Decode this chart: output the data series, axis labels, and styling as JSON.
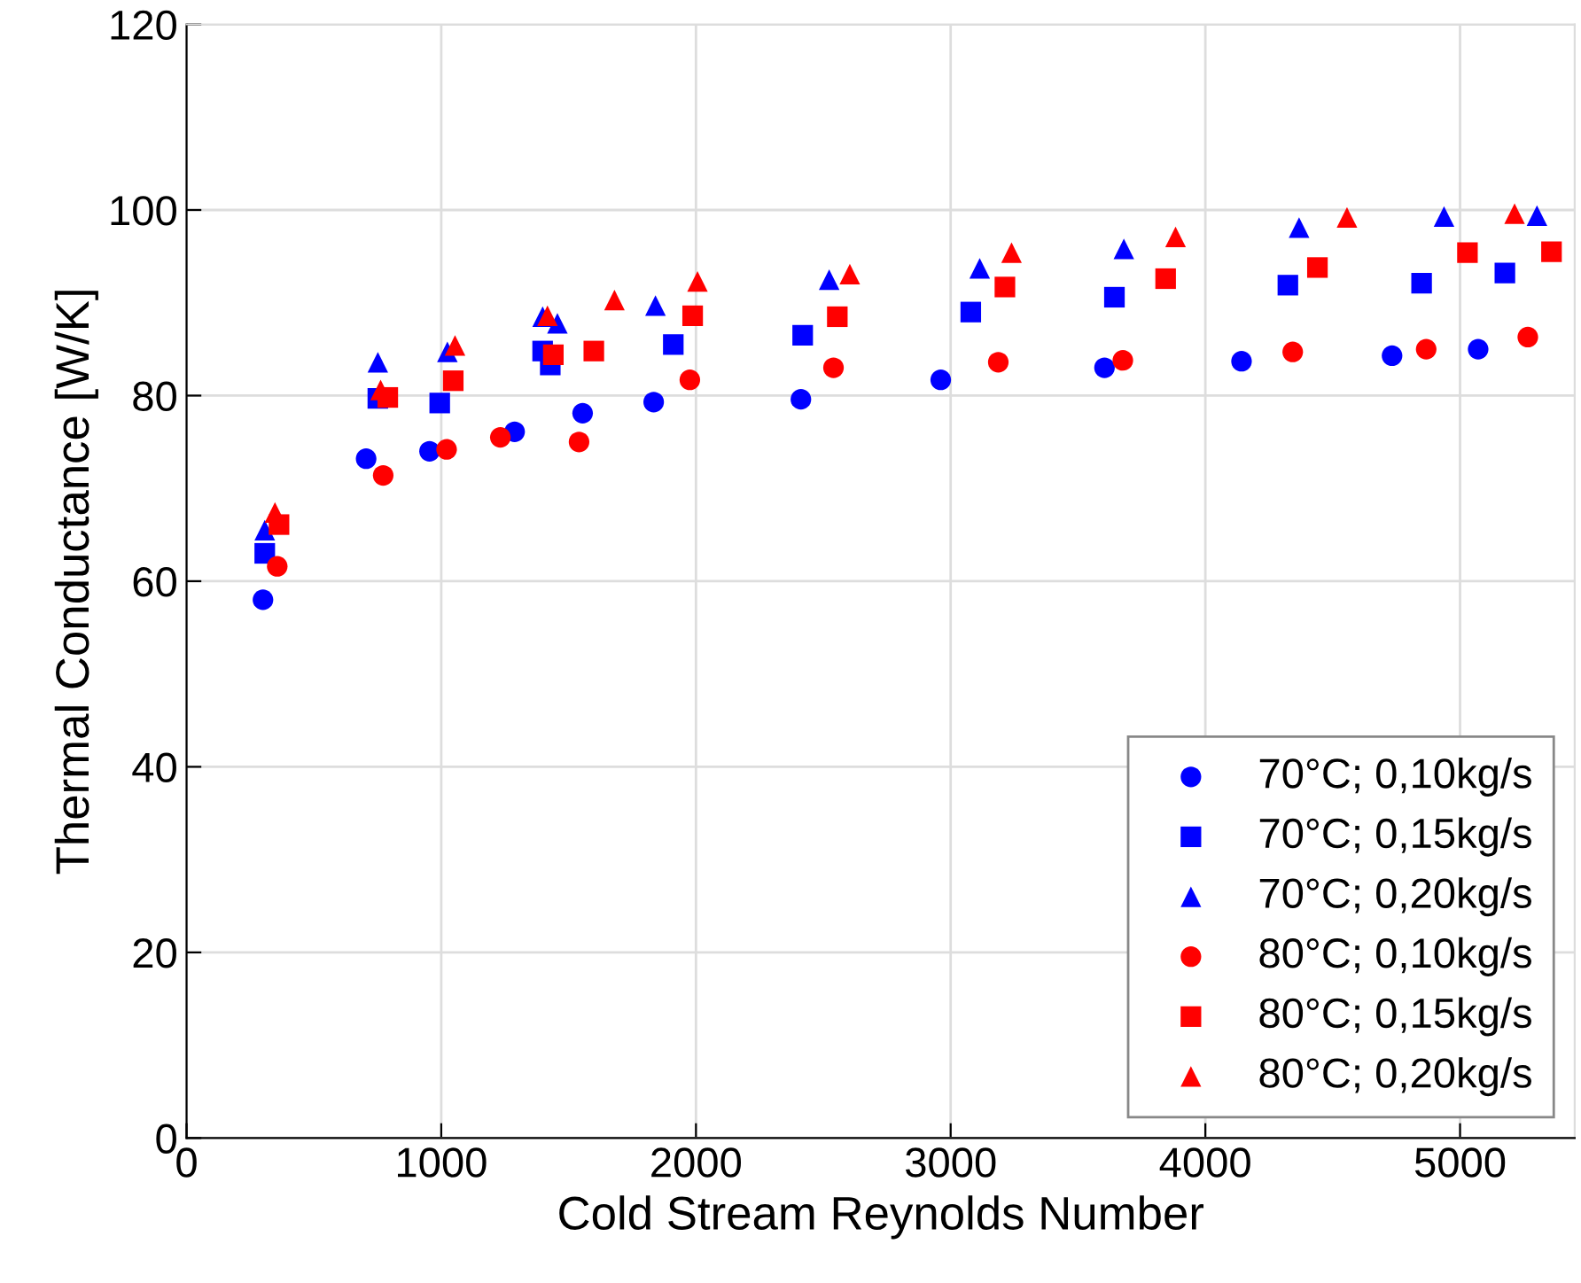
{
  "chart_data": {
    "type": "scatter",
    "xlabel": "Cold Stream Reynolds Number",
    "ylabel": "Thermal Conductance [W/K]",
    "xlim": [
      0,
      5450
    ],
    "xticks": [
      0,
      1000,
      2000,
      3000,
      4000,
      5000
    ],
    "ylim": [
      0,
      120
    ],
    "yticks": [
      0,
      20,
      40,
      60,
      80,
      100,
      120
    ],
    "grid": true,
    "legend": "bottom right",
    "series": [
      {
        "name": "70°C; 0,10kg/s",
        "color": "#0000ff",
        "marker": "circle",
        "x": [
          300,
          705,
          954,
          1288,
          1555,
          1834,
          2412,
          2961,
          3604,
          4142,
          4733,
          5071
        ],
        "values": [
          58.0,
          73.2,
          74.0,
          76.1,
          78.1,
          79.3,
          79.6,
          81.7,
          83.0,
          83.7,
          84.3,
          85.0
        ]
      },
      {
        "name": "70°C; 0,15kg/s",
        "color": "#0000ff",
        "marker": "square",
        "x": [
          307,
          751,
          994,
          1398,
          1428,
          1911,
          2419,
          3079,
          3643,
          4324,
          4849,
          5176
        ],
        "values": [
          63.0,
          79.7,
          79.2,
          84.8,
          83.3,
          85.5,
          86.5,
          89.0,
          90.6,
          91.9,
          92.1,
          93.2
        ]
      },
      {
        "name": "70°C; 0,20kg/s",
        "color": "#0000ff",
        "marker": "triangle",
        "x": [
          307,
          751,
          1024,
          1398,
          1456,
          1841,
          2523,
          3114,
          3680,
          4368,
          4937,
          5302
        ],
        "values": [
          65.5,
          83.6,
          84.7,
          88.5,
          87.8,
          89.7,
          92.5,
          93.7,
          95.8,
          98.1,
          99.3,
          99.4
        ]
      },
      {
        "name": "80°C; 0,10kg/s",
        "color": "#ff0000",
        "marker": "circle",
        "x": [
          356,
          772,
          1021,
          1232,
          1541,
          1976,
          2540,
          3187,
          3676,
          4343,
          4867,
          5266
        ],
        "values": [
          61.6,
          71.4,
          74.2,
          75.5,
          75.0,
          81.7,
          83.0,
          83.6,
          83.8,
          84.7,
          85.0,
          86.3
        ]
      },
      {
        "name": "80°C; 0,15kg/s",
        "color": "#ff0000",
        "marker": "square",
        "x": [
          363,
          790,
          1047,
          1440,
          1599,
          1987,
          2555,
          3213,
          3844,
          4440,
          5029,
          5359
        ],
        "values": [
          66.1,
          79.8,
          81.6,
          84.4,
          84.8,
          88.6,
          88.5,
          91.7,
          92.6,
          93.8,
          95.4,
          95.5
        ]
      },
      {
        "name": "80°C; 0,20kg/s",
        "color": "#ff0000",
        "marker": "triangle",
        "x": [
          347,
          762,
          1054,
          1417,
          1680,
          2006,
          2604,
          3239,
          3883,
          4556,
          5214
        ],
        "values": [
          67.4,
          80.6,
          85.4,
          88.6,
          90.3,
          92.3,
          93.1,
          95.4,
          97.1,
          99.2,
          99.6
        ]
      }
    ]
  }
}
